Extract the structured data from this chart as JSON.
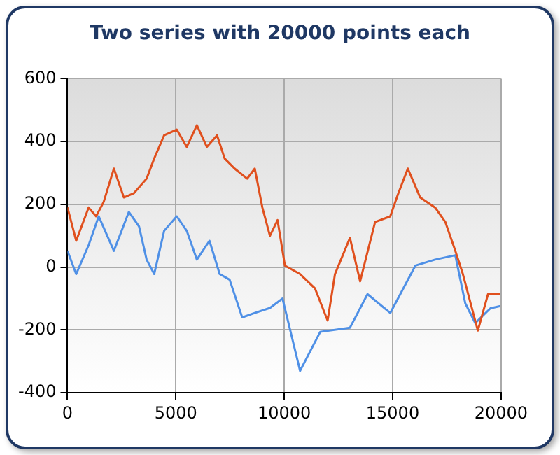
{
  "chart_data": {
    "type": "line",
    "title": "Two series with 20000 points each",
    "xlim": [
      0,
      20000
    ],
    "xticks": [
      0,
      5000,
      10000,
      15000,
      20000
    ],
    "ylim": [
      -400,
      600
    ],
    "yticks": [
      -400,
      -200,
      0,
      200,
      400,
      600
    ],
    "grid": true,
    "legend": false,
    "marker": "none",
    "series": [
      {
        "color": "#e0501e",
        "x": [
          0,
          400,
          975,
          1320,
          1670,
          2140,
          2600,
          3070,
          3650,
          4000,
          4460,
          5040,
          5500,
          5970,
          6430,
          6900,
          7250,
          7710,
          8290,
          8640,
          8990,
          9340,
          9690,
          10030,
          10730,
          11420,
          12000,
          12340,
          13030,
          13500,
          14190,
          14890,
          15240,
          15700,
          16270,
          16960,
          17430,
          17890,
          18240,
          18930,
          19400,
          19970
        ],
        "values": [
          190,
          84,
          190,
          162,
          208,
          314,
          222,
          236,
          282,
          346,
          420,
          438,
          383,
          452,
          383,
          420,
          346,
          314,
          282,
          314,
          190,
          100,
          150,
          5,
          -22,
          -68,
          -170,
          -22,
          93,
          -45,
          144,
          162,
          231,
          314,
          222,
          190,
          144,
          52,
          -22,
          -202,
          -86,
          -86
        ]
      },
      {
        "color": "#4f90e6",
        "x": [
          0,
          400,
          975,
          1440,
          2140,
          2830,
          3300,
          3650,
          4000,
          4460,
          5040,
          5500,
          5970,
          6550,
          7020,
          7480,
          8060,
          8640,
          9340,
          9920,
          10730,
          11660,
          13030,
          13840,
          14890,
          16050,
          16960,
          17890,
          18350,
          18810,
          19510,
          19970
        ],
        "values": [
          52,
          -22,
          70,
          162,
          52,
          176,
          130,
          24,
          -22,
          116,
          162,
          116,
          24,
          84,
          -22,
          -40,
          -160,
          -146,
          -130,
          -100,
          -330,
          -206,
          -193,
          -86,
          -146,
          5,
          24,
          38,
          -115,
          -178,
          -131,
          -124
        ]
      }
    ]
  }
}
